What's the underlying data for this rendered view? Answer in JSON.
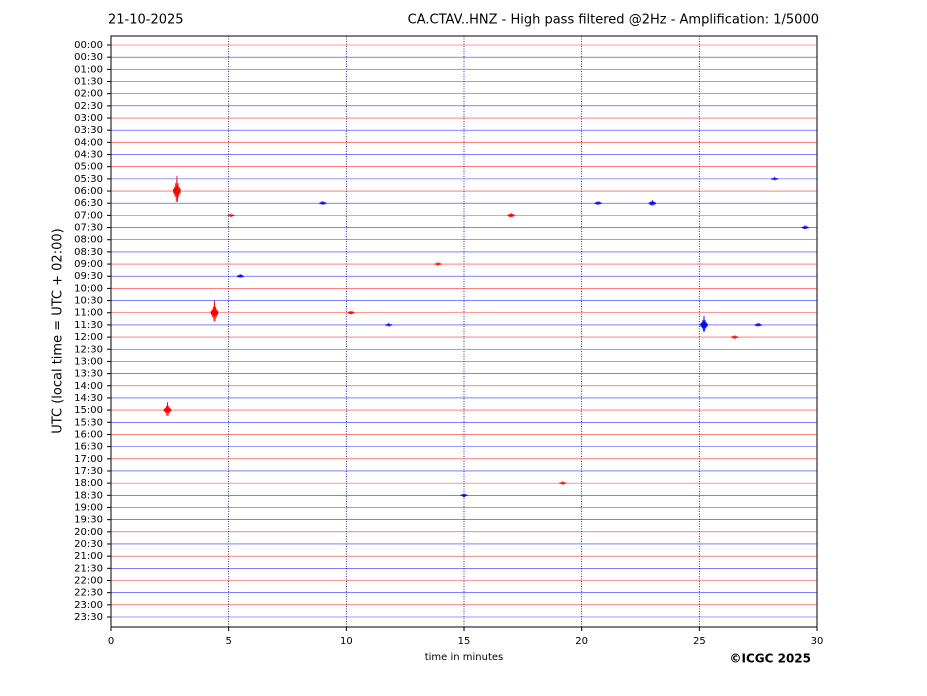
{
  "chart_data": {
    "type": "helicorder",
    "title_left": "21-10-2025",
    "title": "CA.CTAV..HNZ - High pass filtered @2Hz - Amplification: 1/5000",
    "ylabel": "UTC (local time = UTC + 02:00)",
    "xlabel": "time in minutes",
    "credit": "©ICGC 2025",
    "categories": [
      "00:00",
      "00:30",
      "01:00",
      "01:30",
      "02:00",
      "02:30",
      "03:00",
      "03:30",
      "04:00",
      "04:30",
      "05:00",
      "05:30",
      "06:00",
      "06:30",
      "07:00",
      "07:30",
      "08:00",
      "08:30",
      "09:00",
      "09:30",
      "10:00",
      "10:30",
      "11:00",
      "11:30",
      "12:00",
      "12:30",
      "13:00",
      "13:30",
      "14:00",
      "14:30",
      "15:00",
      "15:30",
      "16:00",
      "16:30",
      "17:00",
      "17:30",
      "18:00",
      "18:30",
      "19:00",
      "19:30",
      "20:00",
      "20:30",
      "21:00",
      "21:30",
      "22:00",
      "22:30",
      "23:00",
      "23:30"
    ],
    "colors": [
      "#ff0000",
      "#0000ff"
    ],
    "xlim": [
      0,
      30
    ],
    "xticks": [
      0,
      5,
      10,
      15,
      20,
      25,
      30
    ],
    "grid": true,
    "events": [
      {
        "time": "06:00",
        "minute": 2.8,
        "amplitude": 2.5
      },
      {
        "time": "11:00",
        "minute": 4.4,
        "amplitude": 2.0
      },
      {
        "time": "15:00",
        "minute": 2.4,
        "amplitude": 1.3
      },
      {
        "time": "11:30",
        "minute": 25.2,
        "amplitude": 1.5
      },
      {
        "time": "07:00",
        "minute": 17.0,
        "amplitude": 0.4
      },
      {
        "time": "06:30",
        "minute": 23.0,
        "amplitude": 0.5
      },
      {
        "time": "06:30",
        "minute": 20.7,
        "amplitude": 0.3
      },
      {
        "time": "06:30",
        "minute": 9.0,
        "amplitude": 0.3
      },
      {
        "time": "07:00",
        "minute": 5.1,
        "amplitude": 0.2
      },
      {
        "time": "07:30",
        "minute": 29.5,
        "amplitude": 0.3
      },
      {
        "time": "09:30",
        "minute": 5.5,
        "amplitude": 0.3
      },
      {
        "time": "11:00",
        "minute": 10.2,
        "amplitude": 0.3
      },
      {
        "time": "11:30",
        "minute": 27.5,
        "amplitude": 0.3
      },
      {
        "time": "11:30",
        "minute": 11.8,
        "amplitude": 0.2
      },
      {
        "time": "12:00",
        "minute": 26.5,
        "amplitude": 0.25
      },
      {
        "time": "18:00",
        "minute": 19.2,
        "amplitude": 0.2
      },
      {
        "time": "18:30",
        "minute": 15.0,
        "amplitude": 0.25
      },
      {
        "time": "09:00",
        "minute": 13.9,
        "amplitude": 0.2
      },
      {
        "time": "05:30",
        "minute": 28.2,
        "amplitude": 0.2
      }
    ]
  }
}
